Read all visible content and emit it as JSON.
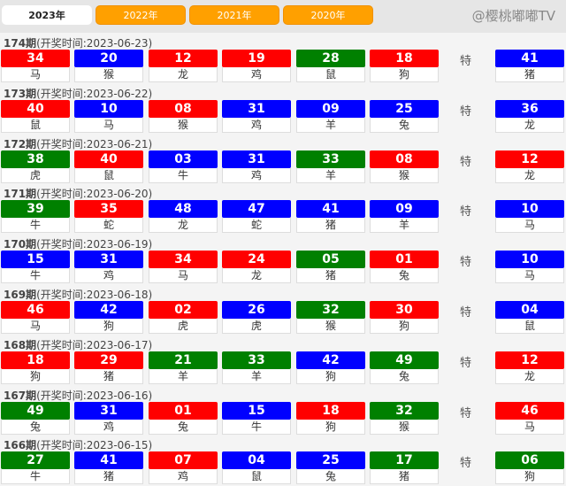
{
  "tabs": [
    {
      "label": "2023年",
      "active": true
    },
    {
      "label": "2022年"
    },
    {
      "label": "2021年"
    },
    {
      "label": "2020年"
    }
  ],
  "special_label": "特",
  "colors": {
    "red": "#ff0000",
    "blue": "#0000ff",
    "green": "#008000"
  },
  "watermark": "@樱桃嘟嘟TV",
  "draws": [
    {
      "period": "174期",
      "time": "(开奖时间:2023-06-23)",
      "balls": [
        [
          "34",
          "马",
          "red"
        ],
        [
          "20",
          "猴",
          "blue"
        ],
        [
          "12",
          "龙",
          "red"
        ],
        [
          "19",
          "鸡",
          "red"
        ],
        [
          "28",
          "鼠",
          "green"
        ],
        [
          "18",
          "狗",
          "red"
        ]
      ],
      "special": [
        "41",
        "猪",
        "blue"
      ]
    },
    {
      "period": "173期",
      "time": "(开奖时间:2023-06-22)",
      "balls": [
        [
          "40",
          "鼠",
          "red"
        ],
        [
          "10",
          "马",
          "blue"
        ],
        [
          "08",
          "猴",
          "red"
        ],
        [
          "31",
          "鸡",
          "blue"
        ],
        [
          "09",
          "羊",
          "blue"
        ],
        [
          "25",
          "兔",
          "blue"
        ]
      ],
      "special": [
        "36",
        "龙",
        "blue"
      ]
    },
    {
      "period": "172期",
      "time": "(开奖时间:2023-06-21)",
      "balls": [
        [
          "38",
          "虎",
          "green"
        ],
        [
          "40",
          "鼠",
          "red"
        ],
        [
          "03",
          "牛",
          "blue"
        ],
        [
          "31",
          "鸡",
          "blue"
        ],
        [
          "33",
          "羊",
          "green"
        ],
        [
          "08",
          "猴",
          "red"
        ]
      ],
      "special": [
        "12",
        "龙",
        "red"
      ]
    },
    {
      "period": "171期",
      "time": "(开奖时间:2023-06-20)",
      "balls": [
        [
          "39",
          "牛",
          "green"
        ],
        [
          "35",
          "蛇",
          "red"
        ],
        [
          "48",
          "龙",
          "blue"
        ],
        [
          "47",
          "蛇",
          "blue"
        ],
        [
          "41",
          "猪",
          "blue"
        ],
        [
          "09",
          "羊",
          "blue"
        ]
      ],
      "special": [
        "10",
        "马",
        "blue"
      ]
    },
    {
      "period": "170期",
      "time": "(开奖时间:2023-06-19)",
      "balls": [
        [
          "15",
          "牛",
          "blue"
        ],
        [
          "31",
          "鸡",
          "blue"
        ],
        [
          "34",
          "马",
          "red"
        ],
        [
          "24",
          "龙",
          "red"
        ],
        [
          "05",
          "猪",
          "green"
        ],
        [
          "01",
          "兔",
          "red"
        ]
      ],
      "special": [
        "10",
        "马",
        "blue"
      ]
    },
    {
      "period": "169期",
      "time": "(开奖时间:2023-06-18)",
      "balls": [
        [
          "46",
          "马",
          "red"
        ],
        [
          "42",
          "狗",
          "blue"
        ],
        [
          "02",
          "虎",
          "red"
        ],
        [
          "26",
          "虎",
          "blue"
        ],
        [
          "32",
          "猴",
          "green"
        ],
        [
          "30",
          "狗",
          "red"
        ]
      ],
      "special": [
        "04",
        "鼠",
        "blue"
      ]
    },
    {
      "period": "168期",
      "time": "(开奖时间:2023-06-17)",
      "balls": [
        [
          "18",
          "狗",
          "red"
        ],
        [
          "29",
          "猪",
          "red"
        ],
        [
          "21",
          "羊",
          "green"
        ],
        [
          "33",
          "羊",
          "green"
        ],
        [
          "42",
          "狗",
          "blue"
        ],
        [
          "49",
          "兔",
          "green"
        ]
      ],
      "special": [
        "12",
        "龙",
        "red"
      ]
    },
    {
      "period": "167期",
      "time": "(开奖时间:2023-06-16)",
      "balls": [
        [
          "49",
          "兔",
          "green"
        ],
        [
          "31",
          "鸡",
          "blue"
        ],
        [
          "01",
          "兔",
          "red"
        ],
        [
          "15",
          "牛",
          "blue"
        ],
        [
          "18",
          "狗",
          "red"
        ],
        [
          "32",
          "猴",
          "green"
        ]
      ],
      "special": [
        "46",
        "马",
        "red"
      ]
    },
    {
      "period": "166期",
      "time": "(开奖时间:2023-06-15)",
      "balls": [
        [
          "27",
          "牛",
          "green"
        ],
        [
          "41",
          "猪",
          "blue"
        ],
        [
          "07",
          "鸡",
          "red"
        ],
        [
          "04",
          "鼠",
          "blue"
        ],
        [
          "25",
          "兔",
          "blue"
        ],
        [
          "17",
          "猪",
          "green"
        ]
      ],
      "special": [
        "06",
        "狗",
        "green"
      ]
    }
  ]
}
